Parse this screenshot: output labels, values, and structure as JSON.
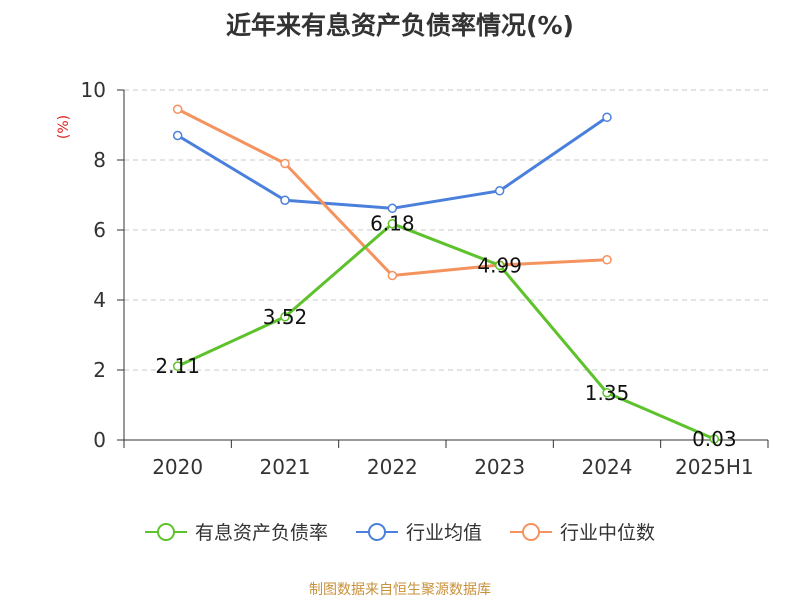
{
  "chart_data": {
    "type": "line",
    "title": "近年来有息资产负债率情况(%)",
    "ylabel": "(%)",
    "categories": [
      "2020",
      "2021",
      "2022",
      "2023",
      "2024",
      "2025H1"
    ],
    "ylim": [
      0,
      10
    ],
    "yticks": [
      0,
      2,
      4,
      6,
      8,
      10
    ],
    "grid": true,
    "legend_position": "bottom",
    "series": [
      {
        "name": "有息资产负债率",
        "color": "#5dc22b",
        "labeled": true,
        "values": [
          2.11,
          3.52,
          6.18,
          4.99,
          1.35,
          0.03
        ],
        "labels": [
          "2.11",
          "3.52",
          "6.18",
          "4.99",
          "1.35",
          "0.03"
        ]
      },
      {
        "name": "行业均值",
        "color": "#4a7fdc",
        "labeled": false,
        "values": [
          8.7,
          6.85,
          6.62,
          7.12,
          9.22,
          null
        ]
      },
      {
        "name": "行业中位数",
        "color": "#f5935f",
        "labeled": false,
        "values": [
          9.45,
          7.9,
          4.7,
          5.0,
          5.15,
          null
        ]
      }
    ]
  },
  "source_text": "制图数据来自恒生聚源数据库"
}
